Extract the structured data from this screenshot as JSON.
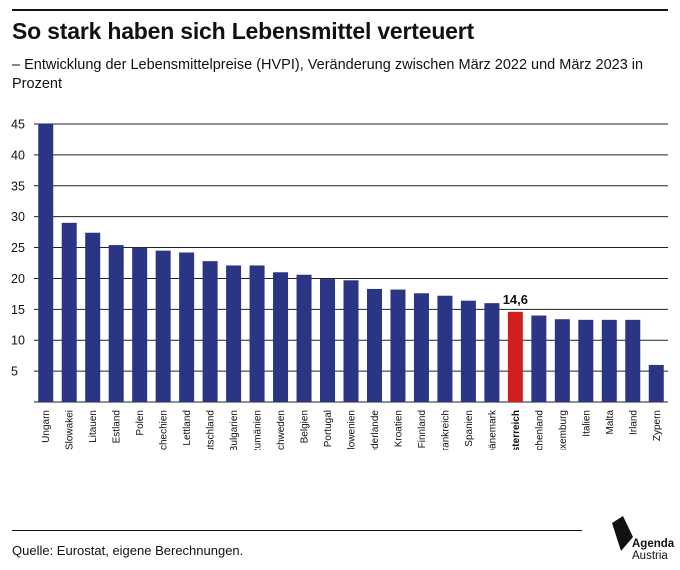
{
  "header": {
    "title": "So stark haben sich Lebensmittel verteuert",
    "subtitle": "– Entwicklung der Lebensmittelpreise (HVPI), Veränderung zwischen März 2022 und März 2023 in Prozent"
  },
  "footer": {
    "source": "Quelle: Eurostat, eigene Berechnungen."
  },
  "logo": {
    "line1": "Agenda",
    "line2": "Austria"
  },
  "colors": {
    "bar": "#2b3585",
    "highlight": "#d01f1f"
  },
  "chart_data": {
    "type": "bar",
    "title": "So stark haben sich Lebensmittel verteuert",
    "xlabel": "",
    "ylabel": "",
    "ylim": [
      0,
      45
    ],
    "yticks": [
      5,
      10,
      15,
      20,
      25,
      30,
      35,
      40,
      45
    ],
    "grid": true,
    "categories": [
      "Ungarn",
      "Slowakei",
      "Litauen",
      "Estland",
      "Polen",
      "Tschechien",
      "Lettland",
      "Deutschland",
      "Bulgarien",
      "Rumänien",
      "Schweden",
      "Belgien",
      "Portugal",
      "Slowenien",
      "Niederlande",
      "Kroatien",
      "Finnland",
      "Frankreich",
      "Spanien",
      "Dänemark",
      "Österreich",
      "Griechenland",
      "Luxemburg",
      "Italien",
      "Malta",
      "Irland",
      "Zypern"
    ],
    "values": [
      45.0,
      29.0,
      27.4,
      25.4,
      25.0,
      24.5,
      24.2,
      22.8,
      22.1,
      22.1,
      21.0,
      20.6,
      19.9,
      19.7,
      18.3,
      18.2,
      17.6,
      17.2,
      16.4,
      16.0,
      14.6,
      14.0,
      13.4,
      13.3,
      13.3,
      13.3,
      6.0
    ],
    "highlight_index": 20,
    "data_labels": [
      {
        "category": "Österreich",
        "text": "14,6"
      }
    ]
  }
}
